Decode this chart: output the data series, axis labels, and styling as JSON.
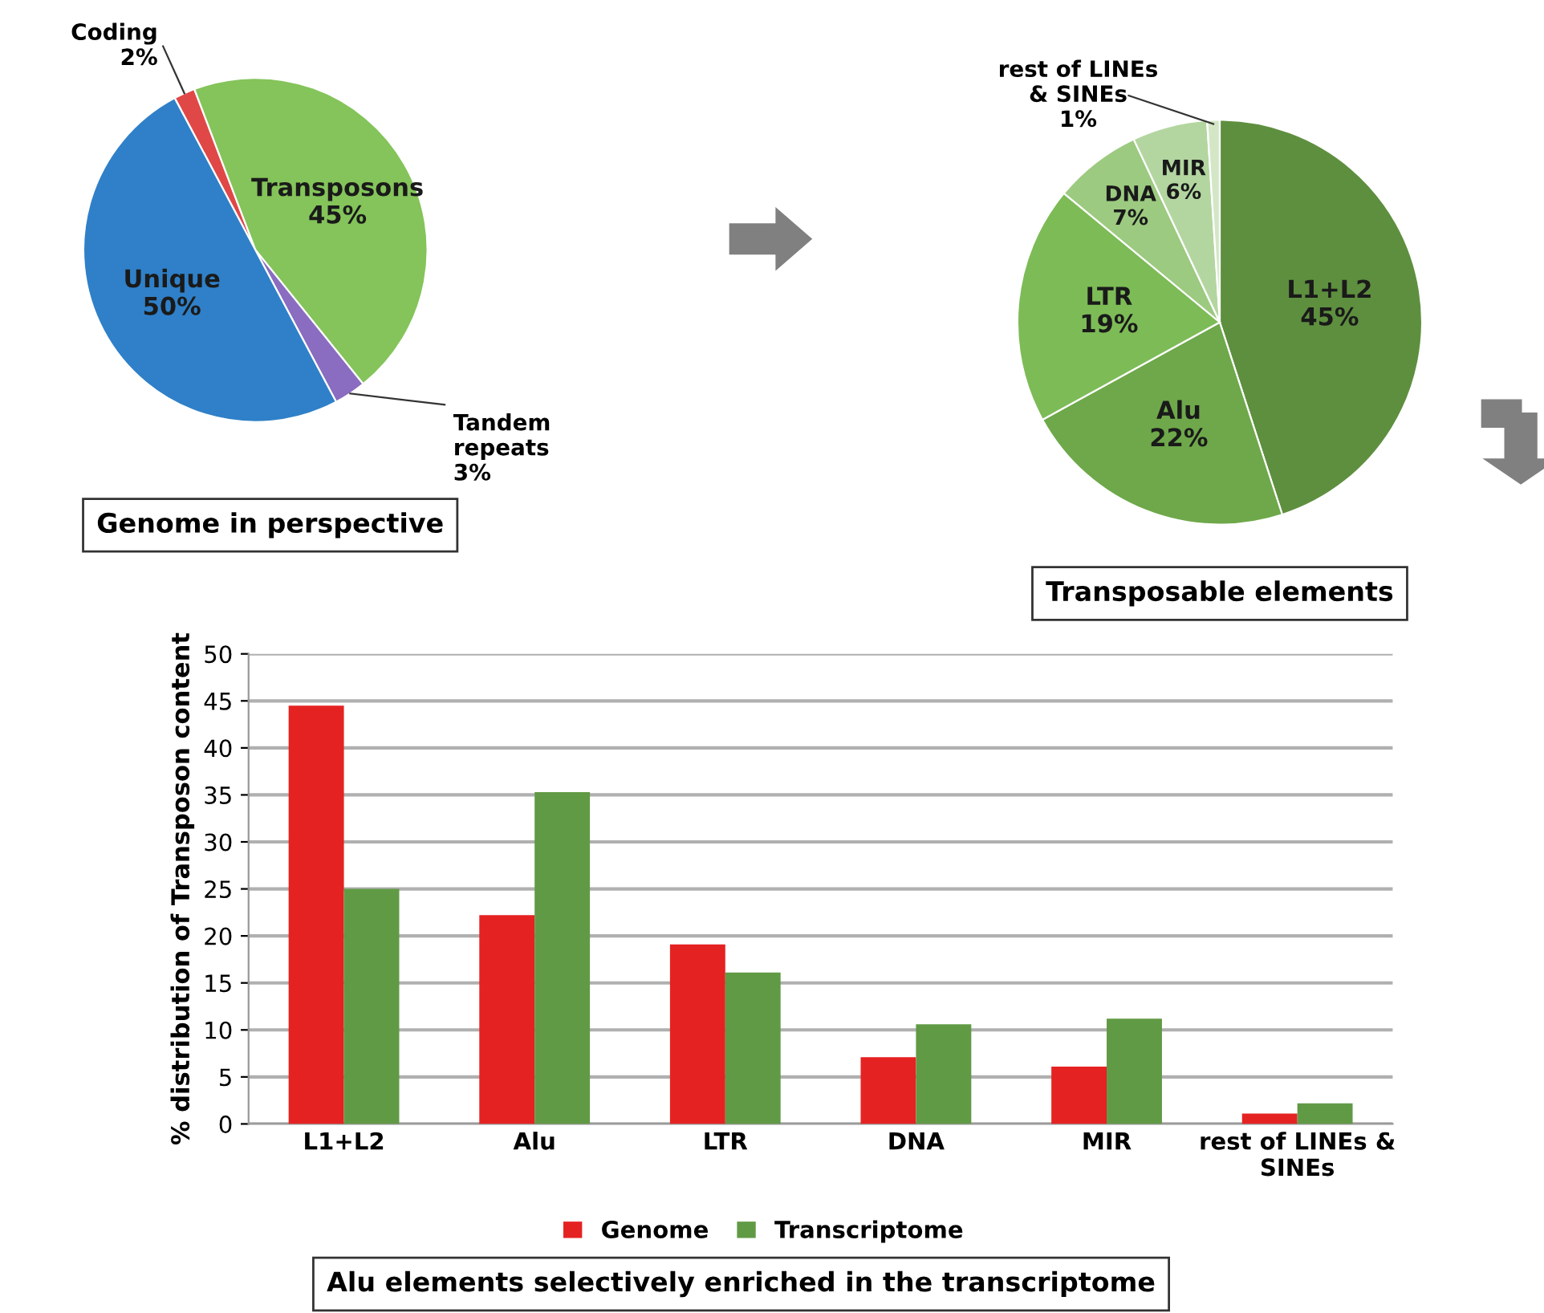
{
  "chart_data": [
    {
      "type": "pie",
      "title": "Genome in perspective",
      "categories": [
        "Coding",
        "Transposons",
        "Tandem\nrepeats",
        "Unique"
      ],
      "values": [
        2,
        45,
        3,
        50
      ],
      "value_labels": [
        "2%",
        "45%",
        "3%",
        "50%"
      ],
      "colors": [
        "#e04848",
        "#84c45a",
        "#8a6cc0",
        "#2f80c8"
      ]
    },
    {
      "type": "pie",
      "title": "Transposable elements",
      "categories": [
        "L1+L2",
        "Alu",
        "LTR",
        "DNA",
        "MIR",
        "rest of LINEs\n& SINEs"
      ],
      "values": [
        45,
        22,
        19,
        7,
        6,
        1
      ],
      "value_labels": [
        "45%",
        "22%",
        "19%",
        "7%",
        "6%",
        "1%"
      ],
      "colors": [
        "#5e8f3f",
        "#6ea84a",
        "#7dbb57",
        "#9cca80",
        "#b3d6a0",
        "#d3e7c6"
      ]
    },
    {
      "type": "bar",
      "title": "Alu elements selectively enriched in the transcriptome",
      "ylabel": "% distribution of Transposon content",
      "categories": [
        "L1+L2",
        "Alu",
        "LTR",
        "DNA",
        "MIR",
        "rest of LINEs &\nSINEs"
      ],
      "series": [
        {
          "name": "Genome",
          "color": "#e52222",
          "values": [
            44.5,
            22.2,
            19.1,
            7.1,
            6.1,
            1.1
          ]
        },
        {
          "name": "Transcriptome",
          "color": "#619a45",
          "values": [
            25.0,
            35.3,
            16.1,
            10.6,
            11.2,
            2.2
          ]
        }
      ],
      "ylim": [
        0,
        50
      ],
      "yticks": [
        0,
        5,
        10,
        15,
        20,
        25,
        30,
        35,
        40,
        45,
        50
      ],
      "grid": "y",
      "legend": "bottom"
    }
  ]
}
